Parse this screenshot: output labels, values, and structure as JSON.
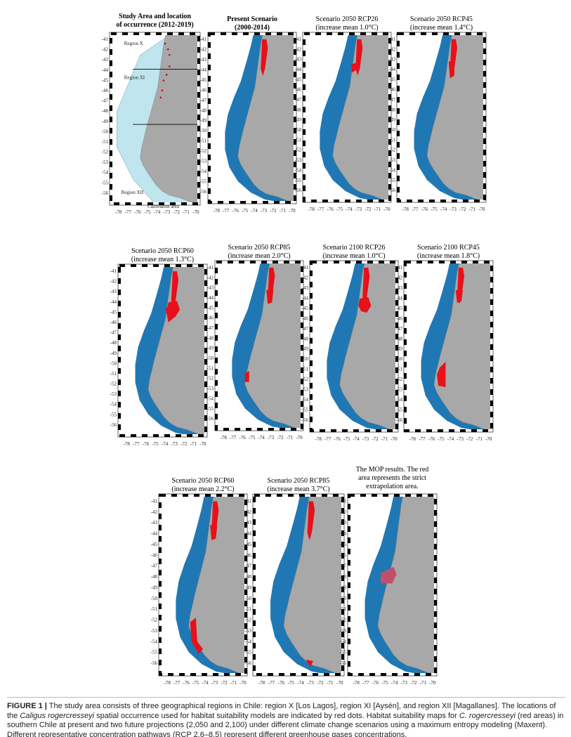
{
  "panels": [
    {
      "title": [
        "Study Area and location",
        "of occurrence (2012-2019)"
      ],
      "labels": [
        "Region X",
        "Region XI",
        "Region XII",
        "Calibration area"
      ]
    },
    {
      "title": [
        "Present Scenario",
        "(2000-2014)"
      ]
    },
    {
      "title": [
        "Scenario  2050 RCP26",
        "(increase mean 1.0°C)"
      ]
    },
    {
      "title": [
        "Scenario  2050 RCP45",
        "(increase mean 1.4°C)"
      ]
    },
    {
      "title": [
        "Scenario  2050 RCP60",
        "(increase mean 1.3°C)"
      ]
    },
    {
      "title": [
        "Scenario  2050 RCP85",
        "(increase mean 2.0°C)"
      ]
    },
    {
      "title": [
        "Scenario  2100 RCP26",
        "(increase mean 1.0°C)"
      ]
    },
    {
      "title": [
        "Scenario  2100 RCP45",
        "(increase mean 1.8°C)"
      ]
    },
    {
      "title": [
        "Scenario  2050 RCP60",
        "(increase mean 2.2°C)"
      ]
    },
    {
      "title": [
        "Scenario  2050 RCP85",
        "(increase mean 3.7°C)"
      ]
    },
    {
      "title": [
        "The MOP results. The red",
        "area represents the strict",
        "extrapolation area."
      ]
    }
  ],
  "axes": {
    "lat_ticks": [
      -41,
      -42,
      -43,
      -44,
      -45,
      -46,
      -47,
      -48,
      -49,
      -50,
      -51,
      -52,
      -53,
      -54,
      -55,
      -56
    ],
    "lon_ticks": [
      -78,
      -77,
      -76,
      -75,
      -74,
      -73,
      -72,
      -71,
      -70
    ]
  },
  "caption": {
    "label": "FIGURE 1 |",
    "segments": [
      " The study area consists of three geographical regions in Chile: region X [Los Lagos], region XI [Aysén], and region XII [Magallanes]. The locations of the ",
      "Caligus rogercresseyi",
      " spatial occurrence used for habitat suitability models are indicated by red dots. Habitat suitability maps for ",
      "C. rogercresseyi",
      " (red areas) in southern Chile at present and two future projections (2,050 and 2,100) under different climate change scenarios using a maximum entropy modeling (Maxent). Different representative concentration pathways (RCP 2.6–8.5) represent different greenhouse gases concentrations."
    ]
  }
}
